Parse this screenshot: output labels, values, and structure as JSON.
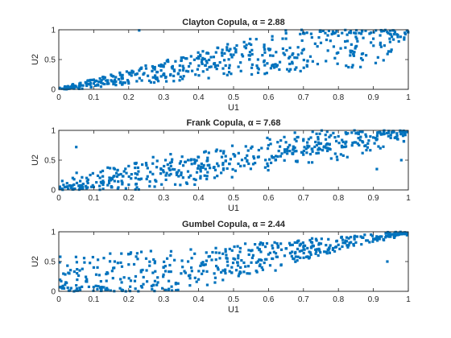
{
  "figure_background": "#ffffff",
  "marker_color": "#0072BD",
  "axis_color": "#262626",
  "chart_data": [
    {
      "type": "scatter",
      "title": "Clayton Copula, α = 2.88",
      "xlabel": "U1",
      "ylabel": "U2",
      "xlim": [
        0,
        1
      ],
      "ylim": [
        0,
        1
      ],
      "xticks": [
        "0",
        "0.1",
        "0.2",
        "0.3",
        "0.4",
        "0.5",
        "0.6",
        "0.7",
        "0.8",
        "0.9",
        "1"
      ],
      "yticks": [
        "0",
        "0.5",
        "1"
      ],
      "grid": false,
      "n_points": 500,
      "dependence": "lower-tail concentrated",
      "points": [
        [
          0.01,
          0.01
        ],
        [
          0.02,
          0.02
        ],
        [
          0.03,
          0.01
        ],
        [
          0.04,
          0.03
        ],
        [
          0.05,
          0.04
        ],
        [
          0.06,
          0.05
        ],
        [
          0.08,
          0.06
        ],
        [
          0.09,
          0.08
        ],
        [
          0.11,
          0.07
        ],
        [
          0.12,
          0.13
        ],
        [
          0.14,
          0.15
        ],
        [
          0.16,
          0.12
        ],
        [
          0.18,
          0.2
        ],
        [
          0.2,
          0.1
        ],
        [
          0.21,
          0.28
        ],
        [
          0.23,
          0.99
        ],
        [
          0.25,
          0.35
        ],
        [
          0.27,
          0.2
        ],
        [
          0.3,
          0.38
        ],
        [
          0.32,
          0.25
        ],
        [
          0.35,
          0.48
        ],
        [
          0.37,
          0.3
        ],
        [
          0.4,
          0.55
        ],
        [
          0.42,
          0.4
        ],
        [
          0.45,
          0.62
        ],
        [
          0.47,
          0.35
        ],
        [
          0.5,
          0.58
        ],
        [
          0.52,
          0.45
        ],
        [
          0.55,
          0.75
        ],
        [
          0.57,
          0.5
        ],
        [
          0.6,
          0.68
        ],
        [
          0.62,
          0.42
        ],
        [
          0.65,
          0.85
        ],
        [
          0.67,
          0.6
        ],
        [
          0.7,
          0.95
        ],
        [
          0.72,
          0.55
        ],
        [
          0.75,
          0.78
        ],
        [
          0.77,
          0.65
        ],
        [
          0.8,
          0.9
        ],
        [
          0.82,
          0.7
        ],
        [
          0.85,
          0.88
        ],
        [
          0.87,
          0.6
        ],
        [
          0.9,
          0.85
        ],
        [
          0.92,
          0.75
        ],
        [
          0.95,
          0.92
        ],
        [
          0.97,
          0.88
        ],
        [
          0.99,
          0.95
        ],
        [
          0.93,
          0.98
        ]
      ]
    },
    {
      "type": "scatter",
      "title": "Frank Copula, α = 7.68",
      "xlabel": "U1",
      "ylabel": "U2",
      "xlim": [
        0,
        1
      ],
      "ylim": [
        0,
        1
      ],
      "xticks": [
        "0",
        "0.1",
        "0.2",
        "0.3",
        "0.4",
        "0.5",
        "0.6",
        "0.7",
        "0.8",
        "0.9",
        "1"
      ],
      "yticks": [
        "0",
        "0.5",
        "1"
      ],
      "grid": false,
      "n_points": 500,
      "dependence": "symmetric",
      "points": [
        [
          0.01,
          0.15
        ],
        [
          0.02,
          0.05
        ],
        [
          0.04,
          0.2
        ],
        [
          0.05,
          0.72
        ],
        [
          0.07,
          0.1
        ],
        [
          0.09,
          0.25
        ],
        [
          0.1,
          0.05
        ],
        [
          0.12,
          0.3
        ],
        [
          0.14,
          0.08
        ],
        [
          0.16,
          0.35
        ],
        [
          0.18,
          0.15
        ],
        [
          0.2,
          0.4
        ],
        [
          0.22,
          0.2
        ],
        [
          0.25,
          0.45
        ],
        [
          0.27,
          0.55
        ],
        [
          0.3,
          0.3
        ],
        [
          0.32,
          0.6
        ],
        [
          0.35,
          0.25
        ],
        [
          0.37,
          0.5
        ],
        [
          0.4,
          0.55
        ],
        [
          0.42,
          0.35
        ],
        [
          0.45,
          0.65
        ],
        [
          0.47,
          0.45
        ],
        [
          0.5,
          0.6
        ],
        [
          0.52,
          0.4
        ],
        [
          0.55,
          0.7
        ],
        [
          0.57,
          0.55
        ],
        [
          0.6,
          0.75
        ],
        [
          0.62,
          0.5
        ],
        [
          0.65,
          0.8
        ],
        [
          0.67,
          0.62
        ],
        [
          0.7,
          0.85
        ],
        [
          0.72,
          0.6
        ],
        [
          0.75,
          0.78
        ],
        [
          0.77,
          0.7
        ],
        [
          0.8,
          0.9
        ],
        [
          0.82,
          0.78
        ],
        [
          0.85,
          0.95
        ],
        [
          0.87,
          0.8
        ],
        [
          0.9,
          0.88
        ],
        [
          0.92,
          0.7
        ],
        [
          0.95,
          0.92
        ],
        [
          0.97,
          0.85
        ],
        [
          0.99,
          0.95
        ],
        [
          0.98,
          0.5
        ],
        [
          0.91,
          0.35
        ]
      ]
    },
    {
      "type": "scatter",
      "title": "Gumbel Copula, α = 2.44",
      "xlabel": "U1",
      "ylabel": "U2",
      "xlim": [
        0,
        1
      ],
      "ylim": [
        0,
        1
      ],
      "xticks": [
        "0",
        "0.1",
        "0.2",
        "0.3",
        "0.4",
        "0.5",
        "0.6",
        "0.7",
        "0.8",
        "0.9",
        "1"
      ],
      "yticks": [
        "0",
        "0.5",
        "1"
      ],
      "grid": false,
      "n_points": 500,
      "dependence": "upper-tail concentrated",
      "points": [
        [
          0.01,
          0.05
        ],
        [
          0.02,
          0.15
        ],
        [
          0.03,
          0.3
        ],
        [
          0.05,
          0.1
        ],
        [
          0.06,
          0.35
        ],
        [
          0.08,
          0.2
        ],
        [
          0.1,
          0.4
        ],
        [
          0.12,
          0.05
        ],
        [
          0.14,
          0.3
        ],
        [
          0.16,
          0.5
        ],
        [
          0.18,
          0.15
        ],
        [
          0.2,
          0.45
        ],
        [
          0.22,
          0.25
        ],
        [
          0.25,
          0.55
        ],
        [
          0.27,
          0.1
        ],
        [
          0.3,
          0.4
        ],
        [
          0.32,
          0.6
        ],
        [
          0.35,
          0.3
        ],
        [
          0.37,
          0.5
        ],
        [
          0.4,
          0.2
        ],
        [
          0.42,
          0.45
        ],
        [
          0.45,
          0.65
        ],
        [
          0.47,
          0.35
        ],
        [
          0.5,
          0.55
        ],
        [
          0.52,
          0.4
        ],
        [
          0.55,
          0.68
        ],
        [
          0.57,
          0.5
        ],
        [
          0.6,
          0.62
        ],
        [
          0.62,
          0.35
        ],
        [
          0.65,
          0.72
        ],
        [
          0.67,
          0.55
        ],
        [
          0.7,
          0.75
        ],
        [
          0.72,
          0.65
        ],
        [
          0.75,
          0.8
        ],
        [
          0.77,
          0.7
        ],
        [
          0.8,
          0.78
        ],
        [
          0.82,
          0.85
        ],
        [
          0.85,
          0.82
        ],
        [
          0.87,
          0.9
        ],
        [
          0.9,
          0.88
        ],
        [
          0.92,
          0.92
        ],
        [
          0.95,
          0.95
        ],
        [
          0.97,
          0.97
        ],
        [
          0.99,
          0.99
        ],
        [
          0.96,
          0.9
        ],
        [
          0.93,
          0.86
        ],
        [
          0.98,
          0.96
        ],
        [
          0.94,
          0.5
        ]
      ]
    }
  ]
}
